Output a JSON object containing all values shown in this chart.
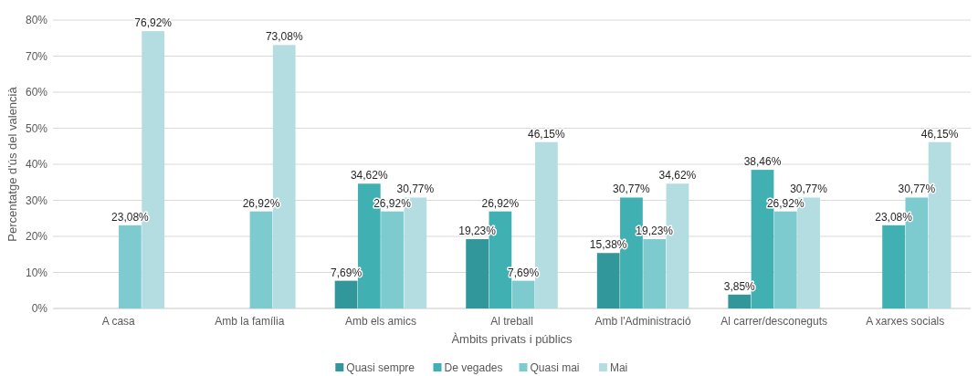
{
  "chart_data": {
    "type": "bar",
    "xlabel": "Àmbits privats i públics",
    "ylabel": "Percentatge d'ús del valencià",
    "categories": [
      "A casa",
      "Amb la família",
      "Amb els amics",
      "Al treball",
      "Amb l'Administració",
      "Al carrer/desconeguts",
      "A xarxes socials"
    ],
    "series": [
      {
        "name": "Quasi sempre",
        "color": "#31979a",
        "values": [
          null,
          null,
          7.69,
          19.23,
          15.38,
          3.85,
          null
        ],
        "value_labels": [
          null,
          null,
          "7,69%",
          "19,23%",
          "15,38%",
          "3,85%",
          null
        ]
      },
      {
        "name": "De vegades",
        "color": "#40b0b3",
        "values": [
          null,
          null,
          34.62,
          26.92,
          30.77,
          38.46,
          23.08
        ],
        "value_labels": [
          null,
          null,
          "34,62%",
          "26,92%",
          "30,77%",
          "38,46%",
          "23,08%"
        ]
      },
      {
        "name": "Quasi mai",
        "color": "#7ecbcf",
        "values": [
          23.08,
          26.92,
          26.92,
          7.69,
          19.23,
          26.92,
          30.77
        ],
        "value_labels": [
          "23,08%",
          "26,92%",
          "26,92%",
          "7,69%",
          "19,23%",
          "26,92%",
          "30,77%"
        ]
      },
      {
        "name": "Mai",
        "color": "#b3dde0",
        "values": [
          76.92,
          73.08,
          30.77,
          46.15,
          34.62,
          30.77,
          46.15
        ],
        "value_labels": [
          "76,92%",
          "73,08%",
          "30,77%",
          "46,15%",
          "34,62%",
          "30,77%",
          "46,15%"
        ]
      }
    ],
    "ylim": [
      0,
      80
    ],
    "yticks": [
      {
        "value": 0,
        "label": "0%"
      },
      {
        "value": 10,
        "label": "10%"
      },
      {
        "value": 20,
        "label": "20%"
      },
      {
        "value": 30,
        "label": "30%"
      },
      {
        "value": 40,
        "label": "40%"
      },
      {
        "value": 50,
        "label": "50%"
      },
      {
        "value": 60,
        "label": "60%"
      },
      {
        "value": 70,
        "label": "70%"
      },
      {
        "value": 80,
        "label": "80%"
      }
    ],
    "grid": "y",
    "legend": "bottom"
  }
}
